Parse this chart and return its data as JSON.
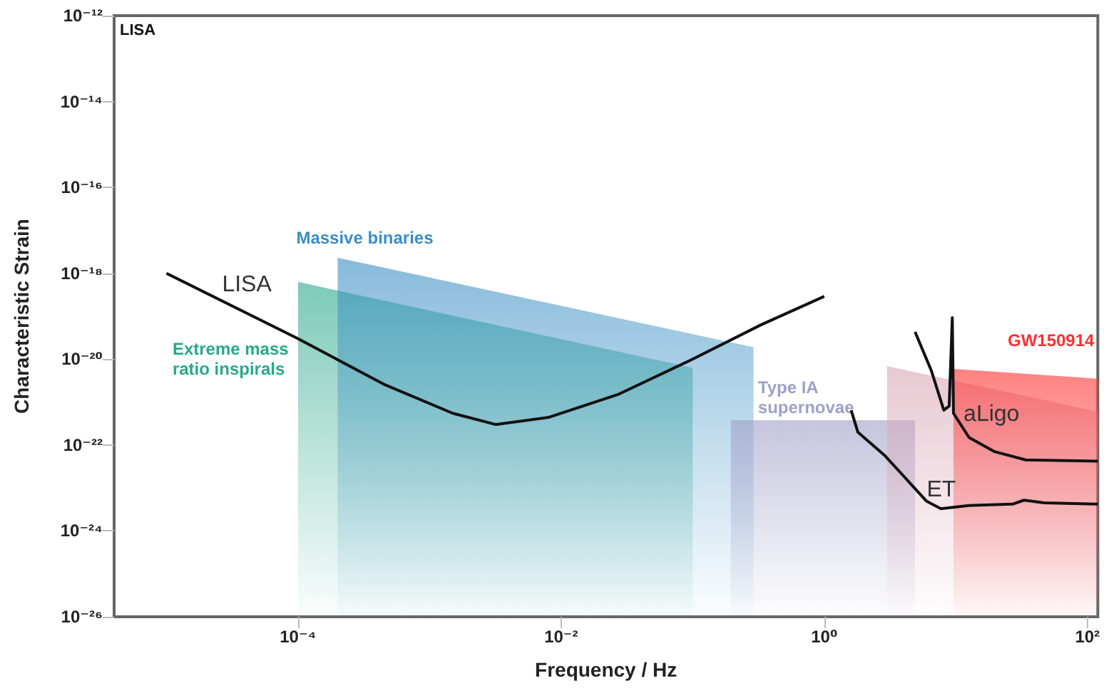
{
  "chart_data": {
    "type": "line",
    "xlabel": "Frequency / Hz",
    "ylabel": "Characteristic Strain",
    "log": "xy",
    "grid": false,
    "marker": "none",
    "xlim": [
      4e-06,
      120
    ],
    "ylim": [
      1e-26,
      1e-12
    ],
    "xticks": [
      {
        "value": 0.0001,
        "label": "10⁻⁴"
      },
      {
        "value": 0.01,
        "label": "10⁻²"
      },
      {
        "value": 1,
        "label": "10⁰"
      },
      {
        "value": 100,
        "label": "10²"
      }
    ],
    "yticks": [
      {
        "value": 1e-26,
        "label": "10⁻²⁶"
      },
      {
        "value": 1e-24,
        "label": "10⁻²⁴"
      },
      {
        "value": 1e-22,
        "label": "10⁻²²"
      },
      {
        "value": 1e-20,
        "label": "10⁻²⁰"
      },
      {
        "value": 1e-18,
        "label": "10⁻¹⁸"
      },
      {
        "value": 1e-16,
        "label": "10⁻¹⁶"
      },
      {
        "value": 1e-14,
        "label": "10⁻¹⁴"
      },
      {
        "value": 1e-12,
        "label": "10⁻¹²"
      }
    ],
    "annotations": [
      "LISA"
    ],
    "series": [
      {
        "type": "area",
        "name": "Extreme mass ratio inspirals",
        "color": "#2aa88a",
        "x": [
          0.0001,
          0.1
        ],
        "values": [
          6.3e-19,
          6.3e-21
        ]
      },
      {
        "type": "area",
        "name": "Massive binaries",
        "color": "#3a8fc4",
        "x": [
          0.0002,
          0.29
        ],
        "values": [
          2.3e-18,
          1.9e-20
        ]
      },
      {
        "type": "area",
        "name": "Type IA supernovae",
        "color": "#9fa0c8",
        "x": [
          0.195,
          4.9
        ],
        "values": [
          3.8e-22,
          3.8e-22
        ]
      },
      {
        "type": "area",
        "color": "#d9a5b5",
        "x": [
          3.0,
          120
        ],
        "values": [
          6.9e-21,
          6e-22
        ]
      },
      {
        "type": "area",
        "name": "GW150914",
        "color": "#ff3030",
        "x": [
          9.6,
          120
        ],
        "values": [
          5.9e-21,
          3.5e-21
        ]
      },
      {
        "name": "LISA",
        "color": "#111111",
        "x": [
          1e-05,
          0.0001,
          0.00045,
          0.0015,
          0.0032,
          0.008,
          0.027,
          0.095,
          0.33,
          1
        ],
        "values": [
          1e-18,
          3e-20,
          2.6e-21,
          5.5e-22,
          3e-22,
          4.4e-22,
          1.5e-21,
          9.3e-21,
          6.3e-20,
          2.9e-19
        ]
      },
      {
        "name": "aLigo",
        "color": "#111111",
        "x": [
          4.9,
          6.5,
          8.1,
          8.9,
          9.4,
          9.6,
          12.6,
          19.5,
          34,
          120
        ],
        "values": [
          4.3e-20,
          5.5e-21,
          6.5e-22,
          8.1e-22,
          9.3e-20,
          5.5e-22,
          1.5e-22,
          7.1e-23,
          4.5e-23,
          4.2e-23
        ]
      },
      {
        "name": "ET",
        "color": "#111111",
        "x": [
          1.6,
          1.8,
          2.9,
          6.0,
          7.7,
          12.6,
          27,
          33,
          47,
          120
        ],
        "values": [
          6.5e-22,
          2e-22,
          5.6e-23,
          4.9e-24,
          3.3e-24,
          3.9e-24,
          4.2e-24,
          5.2e-24,
          4.5e-24,
          4.2e-24
        ]
      }
    ]
  }
}
